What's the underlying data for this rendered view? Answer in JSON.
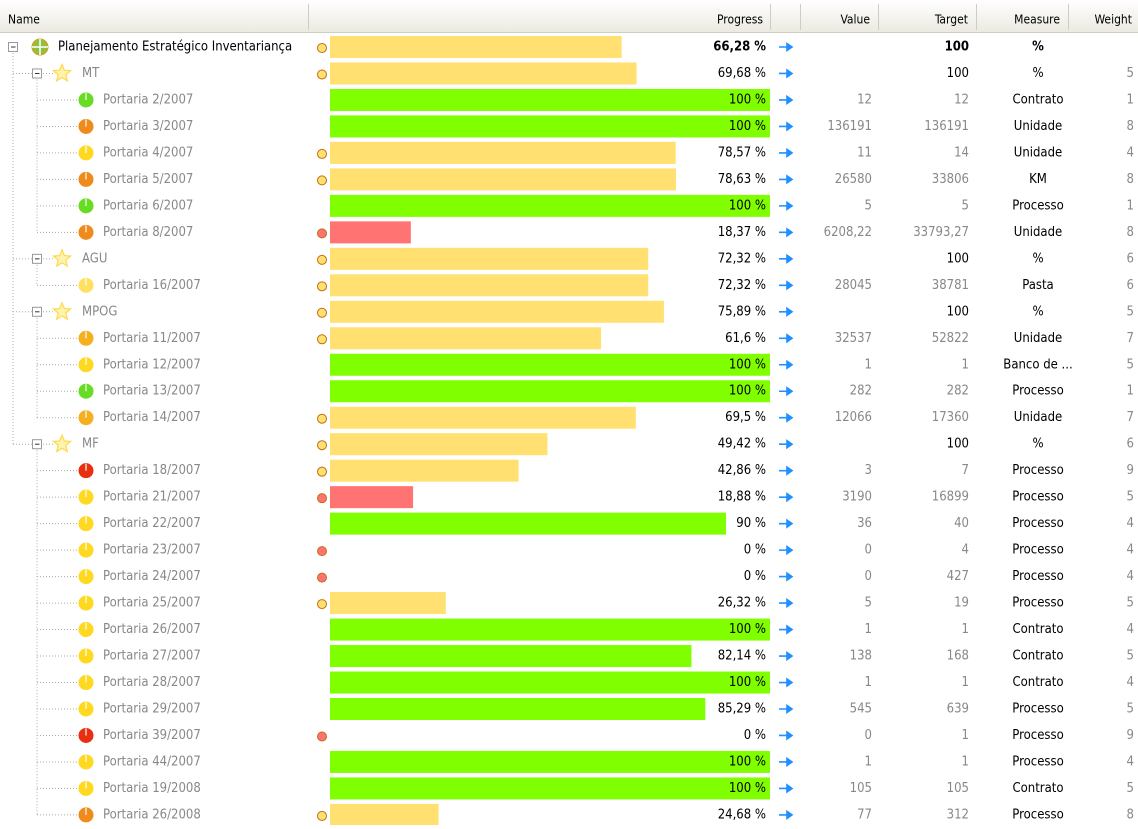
{
  "header": {
    "columns": [
      "Name",
      "Progress",
      "Value",
      "Target",
      "Measure",
      "Weight"
    ]
  },
  "rows": [
    {
      "name": "Planejamento Estratégico Inventariança",
      "level": 0,
      "progress": {
        "value": 66.28,
        "label": "66,28 %"
      },
      "target": "100",
      "measure": "%",
      "color": "#ffe070",
      "icon": "#8fbf3f"
    },
    {
      "name": "MT",
      "level": 1,
      "progress": {
        "value": 69.68,
        "label": "69,68 %"
      },
      "target": "100",
      "measure": "%",
      "weight": "5",
      "color": "#ffe070",
      "icon": "#ffd84a"
    },
    {
      "name": "Portaria 2/2007",
      "level": 2,
      "progress": {
        "value": 100,
        "label": "100 %"
      },
      "value": "12",
      "target": "12",
      "measure": "Contrato",
      "weight": "1",
      "color": "#80ff00",
      "icon": "#66dd22"
    },
    {
      "name": "Portaria 3/2007",
      "level": 2,
      "progress": {
        "value": 100,
        "label": "100 %"
      },
      "value": "136191",
      "target": "136191",
      "measure": "Unidade",
      "weight": "8",
      "color": "#80ff00",
      "icon": "#f08a1a"
    },
    {
      "name": "Portaria 4/2007",
      "level": 2,
      "progress": {
        "value": 78.57,
        "label": "78,57 %"
      },
      "value": "11",
      "target": "14",
      "measure": "Unidade",
      "weight": "4",
      "color": "#ffe070",
      "icon": "#ffd820"
    },
    {
      "name": "Portaria 5/2007",
      "level": 2,
      "progress": {
        "value": 78.63,
        "label": "78,63 %"
      },
      "value": "26580",
      "target": "33806",
      "measure": "KM",
      "weight": "8",
      "color": "#ffe070",
      "icon": "#f08a1a"
    },
    {
      "name": "Portaria 6/2007",
      "level": 2,
      "progress": {
        "value": 100,
        "label": "100 %"
      },
      "value": "5",
      "target": "5",
      "measure": "Processo",
      "weight": "1",
      "color": "#80ff00",
      "icon": "#66dd22"
    },
    {
      "name": "Portaria 8/2007",
      "level": 2,
      "progress": {
        "value": 18.37,
        "label": "18,37 %"
      },
      "value": "6208,22",
      "target": "33793,27",
      "measure": "Unidade",
      "weight": "8",
      "color": "#ff7373",
      "icon": "#f08a1a"
    },
    {
      "name": "AGU",
      "level": 1,
      "progress": {
        "value": 72.32,
        "label": "72,32 %"
      },
      "target": "100",
      "measure": "%",
      "weight": "6",
      "color": "#ffe070",
      "icon": "#ffd84a"
    },
    {
      "name": "Portaria 16/2007",
      "level": 2,
      "progress": {
        "value": 72.32,
        "label": "72,32 %"
      },
      "value": "28045",
      "target": "38781",
      "measure": "Pasta",
      "weight": "6",
      "color": "#ffe070",
      "icon": "#ffe060"
    },
    {
      "name": "MPOG",
      "level": 1,
      "progress": {
        "value": 75.89,
        "label": "75,89 %"
      },
      "target": "100",
      "measure": "%",
      "weight": "5",
      "color": "#ffe070",
      "icon": "#ffd84a"
    },
    {
      "name": "Portaria 11/2007",
      "level": 2,
      "progress": {
        "value": 61.6,
        "label": "61,6 %"
      },
      "value": "32537",
      "target": "52822",
      "measure": "Unidade",
      "weight": "7",
      "color": "#ffe070",
      "icon": "#f5b020"
    },
    {
      "name": "Portaria 12/2007",
      "level": 2,
      "progress": {
        "value": 100,
        "label": "100 %"
      },
      "value": "1",
      "target": "1",
      "measure": "Banco de ...",
      "weight": "5",
      "color": "#80ff00",
      "icon": "#ffd820"
    },
    {
      "name": "Portaria 13/2007",
      "level": 2,
      "progress": {
        "value": 100,
        "label": "100 %"
      },
      "value": "282",
      "target": "282",
      "measure": "Processo",
      "weight": "1",
      "color": "#80ff00",
      "icon": "#66dd22"
    },
    {
      "name": "Portaria 14/2007",
      "level": 2,
      "progress": {
        "value": 69.5,
        "label": "69,5 %"
      },
      "value": "12066",
      "target": "17360",
      "measure": "Unidade",
      "weight": "7",
      "color": "#ffe070",
      "icon": "#f5b020"
    },
    {
      "name": "MF",
      "level": 1,
      "progress": {
        "value": 49.42,
        "label": "49,42 %"
      },
      "target": "100",
      "measure": "%",
      "weight": "6",
      "color": "#ffe070",
      "icon": "#ffd84a"
    },
    {
      "name": "Portaria 18/2007",
      "level": 2,
      "progress": {
        "value": 42.86,
        "label": "42,86 %"
      },
      "value": "3",
      "target": "7",
      "measure": "Processo",
      "weight": "9",
      "color": "#ffe070",
      "icon": "#e83010"
    },
    {
      "name": "Portaria 21/2007",
      "level": 2,
      "progress": {
        "value": 18.88,
        "label": "18,88 %"
      },
      "value": "3190",
      "target": "16899",
      "measure": "Processo",
      "weight": "5",
      "color": "#ff7373",
      "icon": "#ffd820"
    },
    {
      "name": "Portaria 22/2007",
      "level": 2,
      "progress": {
        "value": 90,
        "label": "90 %"
      },
      "value": "36",
      "target": "40",
      "measure": "Processo",
      "weight": "4",
      "color": "#80ff00",
      "icon": "#ffd820"
    },
    {
      "name": "Portaria 23/2007",
      "level": 2,
      "progress": {
        "value": 0,
        "label": "0 %"
      },
      "value": "0",
      "target": "4",
      "measure": "Processo",
      "weight": "4",
      "color": "#ff7373",
      "icon": "#ffd820"
    },
    {
      "name": "Portaria 24/2007",
      "level": 2,
      "progress": {
        "value": 0,
        "label": "0 %"
      },
      "value": "0",
      "target": "427",
      "measure": "Processo",
      "weight": "4",
      "color": "#ff7373",
      "icon": "#ffd820"
    },
    {
      "name": "Portaria 25/2007",
      "level": 2,
      "progress": {
        "value": 26.32,
        "label": "26,32 %"
      },
      "value": "5",
      "target": "19",
      "measure": "Processo",
      "weight": "5",
      "color": "#ffe070",
      "icon": "#ffd820"
    },
    {
      "name": "Portaria 26/2007",
      "level": 2,
      "progress": {
        "value": 100,
        "label": "100 %"
      },
      "value": "1",
      "target": "1",
      "measure": "Contrato",
      "weight": "4",
      "color": "#80ff00",
      "icon": "#ffd820"
    },
    {
      "name": "Portaria 27/2007",
      "level": 2,
      "progress": {
        "value": 82.14,
        "label": "82,14 %"
      },
      "value": "138",
      "target": "168",
      "measure": "Contrato",
      "weight": "5",
      "color": "#80ff00",
      "icon": "#ffd820"
    },
    {
      "name": "Portaria 28/2007",
      "level": 2,
      "progress": {
        "value": 100,
        "label": "100 %"
      },
      "value": "1",
      "target": "1",
      "measure": "Contrato",
      "weight": "4",
      "color": "#80ff00",
      "icon": "#ffd820"
    },
    {
      "name": "Portaria 29/2007",
      "level": 2,
      "progress": {
        "value": 85.29,
        "label": "85,29 %"
      },
      "value": "545",
      "target": "639",
      "measure": "Processo",
      "weight": "5",
      "color": "#80ff00",
      "icon": "#ffd820"
    },
    {
      "name": "Portaria 39/2007",
      "level": 2,
      "progress": {
        "value": 0,
        "label": "0 %"
      },
      "value": "0",
      "target": "1",
      "measure": "Processo",
      "weight": "9",
      "color": "#ff7373",
      "icon": "#e83010"
    },
    {
      "name": "Portaria 44/2007",
      "level": 2,
      "progress": {
        "value": 100,
        "label": "100 %"
      },
      "value": "1",
      "target": "1",
      "measure": "Processo",
      "weight": "4",
      "color": "#80ff00",
      "icon": "#ffd820"
    },
    {
      "name": "Portaria 19/2008",
      "level": 2,
      "progress": {
        "value": 100,
        "label": "100 %"
      },
      "value": "105",
      "target": "105",
      "measure": "Contrato",
      "weight": "5",
      "color": "#80ff00",
      "icon": "#ffd820"
    },
    {
      "name": "Portaria 26/2008",
      "level": 2,
      "progress": {
        "value": 24.68,
        "label": "24,68 %"
      },
      "value": "77",
      "target": "312",
      "measure": "Processo",
      "weight": "8",
      "color": "#ffe070",
      "icon": "#f08a1a"
    }
  ]
}
